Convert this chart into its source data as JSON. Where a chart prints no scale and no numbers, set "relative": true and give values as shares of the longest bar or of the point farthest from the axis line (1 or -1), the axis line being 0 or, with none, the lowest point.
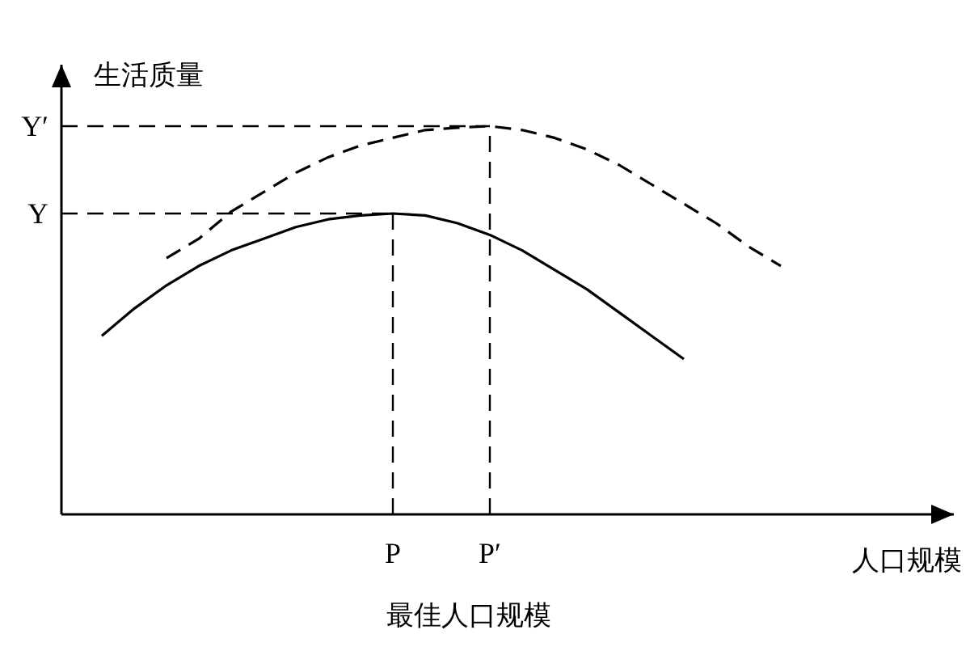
{
  "chart_data": {
    "type": "line",
    "relative": true,
    "xlabel": "人口规模",
    "ylabel": "生活质量",
    "categories": [
      null,
      null,
      null,
      null,
      null,
      null,
      null,
      null,
      null,
      null,
      "P",
      null,
      null,
      "P′",
      null,
      null,
      null,
      null,
      null,
      null,
      null,
      null,
      null,
      null,
      null,
      null,
      null,
      null
    ],
    "series": [
      {
        "color": "#000000",
        "line_style": "solid",
        "values": [
          null,
          0.46,
          0.53,
          0.59,
          0.64,
          0.68,
          0.71,
          0.74,
          0.76,
          0.77,
          0.775,
          0.77,
          0.75,
          0.72,
          0.68,
          0.63,
          0.58,
          0.52,
          0.46,
          0.4,
          null,
          null,
          null,
          null,
          null,
          null,
          null,
          null
        ]
      },
      {
        "color": "#000000",
        "line_style": "dashed",
        "values": [
          null,
          null,
          null,
          0.66,
          0.71,
          0.78,
          0.83,
          0.88,
          0.92,
          0.95,
          0.97,
          0.99,
          0.996,
          1,
          0.99,
          0.97,
          0.94,
          0.9,
          0.85,
          0.8,
          0.75,
          0.69,
          0.64,
          null,
          null,
          null,
          null,
          null
        ]
      }
    ],
    "ref_lines": [
      {
        "axis": "y",
        "value": 0.775,
        "label": "Y",
        "line_style": "dashed"
      },
      {
        "axis": "y",
        "value": 1,
        "label": "Y′",
        "line_style": "dashed"
      },
      {
        "axis": "x",
        "value": "P",
        "line_style": "dashed"
      },
      {
        "axis": "x",
        "value": "P′",
        "line_style": "dashed"
      }
    ],
    "annotations": [
      "最佳人口规模"
    ]
  }
}
